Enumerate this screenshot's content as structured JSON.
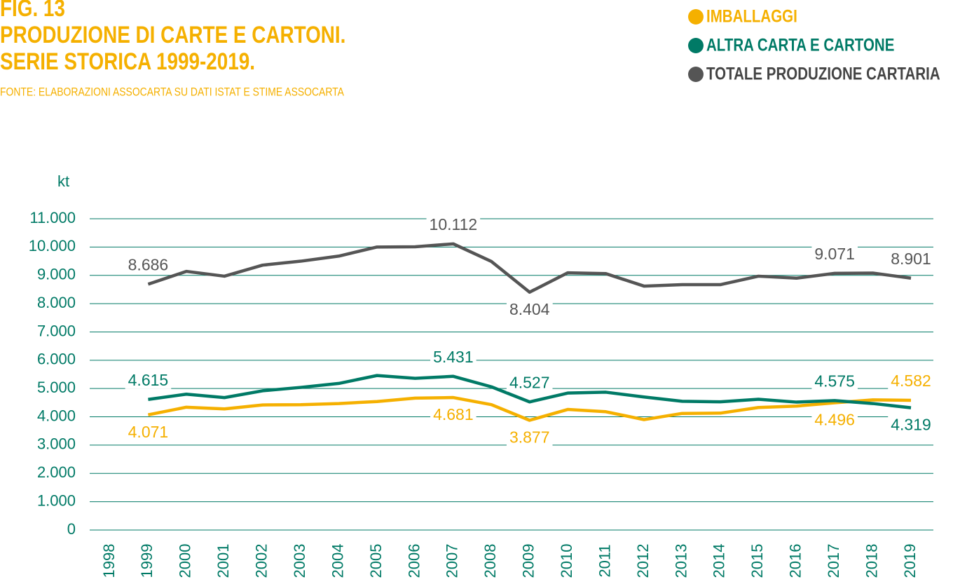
{
  "chart_data": {
    "type": "line",
    "figure": "FIG. 13",
    "title": [
      "PRODUZIONE DI CARTE E CARTONI.",
      "SERIE STORICA 1999-2019."
    ],
    "source": "FONTE: ELABORAZIONI ASSOCARTA SU DATI ISTAT E STIME ASSOCARTA",
    "ylabel": "kt",
    "categories": [
      "1998",
      "1999",
      "2000",
      "2001",
      "2002",
      "2003",
      "2004",
      "2005",
      "2006",
      "2007",
      "2008",
      "2009",
      "2010",
      "2011",
      "2012",
      "2013",
      "2014",
      "2015",
      "2016",
      "2017",
      "2018",
      "2019"
    ],
    "ylim": [
      0,
      11000
    ],
    "yticks": [
      {
        "value": 0,
        "label": "0"
      },
      {
        "value": 1000,
        "label": "1.000"
      },
      {
        "value": 2000,
        "label": "2.000"
      },
      {
        "value": 3000,
        "label": "3.000"
      },
      {
        "value": 4000,
        "label": "4.000"
      },
      {
        "value": 5000,
        "label": "5.000"
      },
      {
        "value": 6000,
        "label": "6.000"
      },
      {
        "value": 7000,
        "label": "7.000"
      },
      {
        "value": 8000,
        "label": "8.000"
      },
      {
        "value": 9000,
        "label": "9.000"
      },
      {
        "value": 10000,
        "label": "10.000"
      },
      {
        "value": 11000,
        "label": "11.000"
      }
    ],
    "grid": true,
    "series": [
      {
        "name": "IMBALLAGGI",
        "color": "#f5b000",
        "values": [
          null,
          4071,
          4340,
          4280,
          4420,
          4430,
          4470,
          4540,
          4660,
          4681,
          4430,
          3877,
          4260,
          4180,
          3900,
          4120,
          4130,
          4330,
          4380,
          4496,
          4600,
          4582
        ],
        "value_labels": [
          null,
          "4.071",
          null,
          null,
          null,
          null,
          null,
          null,
          null,
          "4.681",
          null,
          "3.877",
          null,
          null,
          null,
          null,
          null,
          null,
          null,
          "4.496",
          null,
          "4.582"
        ]
      },
      {
        "name": "ALTRA CARTA E CARTONE",
        "color": "#007a66",
        "values": [
          null,
          4615,
          4800,
          4680,
          4920,
          5040,
          5180,
          5460,
          5360,
          5431,
          5060,
          4527,
          4840,
          4870,
          4700,
          4550,
          4530,
          4620,
          4520,
          4575,
          4470,
          4319
        ],
        "value_labels": [
          null,
          "4.615",
          null,
          null,
          null,
          null,
          null,
          null,
          null,
          "5.431",
          null,
          "4.527",
          null,
          null,
          null,
          null,
          null,
          null,
          null,
          "4.575",
          null,
          "4.319"
        ]
      },
      {
        "name": "TOTALE PRODUZIONE CARTARIA",
        "color": "#555555",
        "values": [
          null,
          8686,
          9140,
          8970,
          9360,
          9500,
          9680,
          10000,
          10010,
          10112,
          9490,
          8404,
          9090,
          9060,
          8620,
          8670,
          8670,
          8970,
          8900,
          9071,
          9080,
          8901
        ],
        "value_labels": [
          null,
          "8.686",
          null,
          null,
          null,
          null,
          null,
          null,
          null,
          "10.112",
          null,
          "8.404",
          null,
          null,
          null,
          null,
          null,
          null,
          null,
          "9.071",
          null,
          "8.901"
        ]
      }
    ]
  }
}
